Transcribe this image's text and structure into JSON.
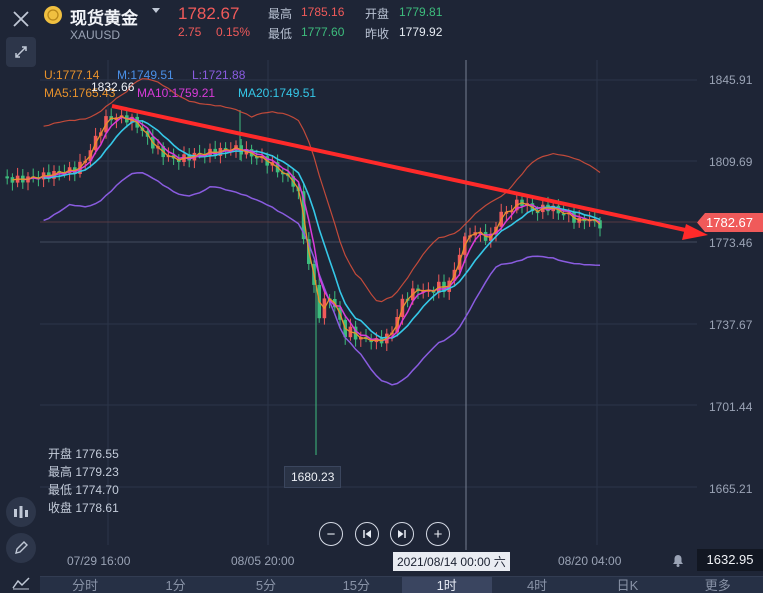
{
  "header": {
    "symbol_name": "现货黄金",
    "symbol_code": "XAUUSD",
    "price": "1782.67",
    "change": "2.75",
    "change_pct": "0.15%",
    "high_label": "最高",
    "high": "1785.16",
    "open_label": "开盘",
    "open": "1779.81",
    "low_label": "最低",
    "low": "1777.60",
    "prev_label": "昨收",
    "prev": "1779.92"
  },
  "boll": {
    "u": "U:1777.14",
    "m": "M:1749.51",
    "l": "L:1721.88"
  },
  "ma": {
    "ma5": "MA5:1765.43",
    "ma10": "MA10:1759.21",
    "ma20": "MA20:1749.51"
  },
  "annotations": {
    "max_label": "1832.66",
    "min_label": "1680.23"
  },
  "price_axis": [
    "1845.91",
    "1809.69",
    "1773.46",
    "1737.67",
    "1701.44",
    "1665.21"
  ],
  "current_price_tag": "1782.67",
  "volume_value": "1632.95",
  "crosshair_time": "2021/08/14 00:00 六",
  "date_labels": [
    "07/29 16:00",
    "08/05 20:00",
    "08/20 04:00"
  ],
  "ohlc": {
    "open_label": "开盘",
    "open": "1776.55",
    "high_label": "最高",
    "high": "1779.23",
    "low_label": "最低",
    "low": "1774.70",
    "close_label": "收盘",
    "close": "1778.61"
  },
  "tabs": [
    "分时",
    "1分",
    "5分",
    "15分",
    "1时",
    "4时",
    "日K",
    "更多"
  ],
  "active_tab": "1时",
  "colors": {
    "background": "#1e2536",
    "up": "#f05a5a",
    "down": "#3dbd7d",
    "ma5": "#e8922c",
    "ma10": "#d93bd9",
    "ma20": "#35c8e8",
    "boll_upper": "#c24a3a",
    "boll_lower": "#8a5ce0",
    "trendline": "#ff2a2a"
  },
  "icons": [
    "close-icon",
    "collapse-icon",
    "gold-coin-icon",
    "dropdown-caret-icon",
    "indicator-icon",
    "pen-icon",
    "line-icon",
    "bell-icon"
  ]
}
